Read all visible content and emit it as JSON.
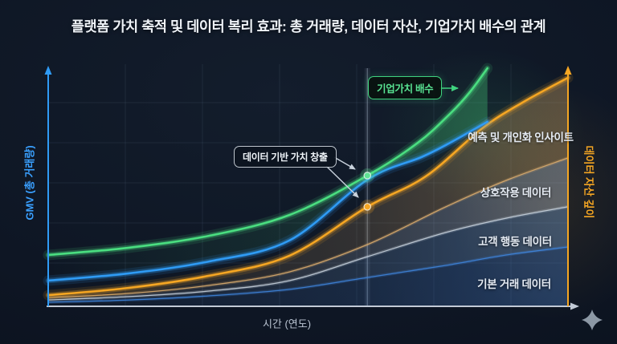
{
  "title": "플랫폼 가치 축적 및 데이터 복리 효과: 총 거래량, 데이터 자산, 기업가치 배수의 관계",
  "axes": {
    "left": {
      "label": "GMV (총 거래량)",
      "color": "#3aa0ff"
    },
    "right": {
      "label": "데이터 자산 깊이",
      "color": "#f5a623"
    },
    "x": {
      "label": "시간 (연도)",
      "color": "#b9c3d1"
    }
  },
  "annotations": {
    "enterprise_value_callout": "기업가치 배수",
    "data_value_callout": "데이터 기반 가치 창출"
  },
  "icons": {
    "logo": "sparkle-logo-icon",
    "logo_color": "#9aa6b4"
  },
  "chart_data": {
    "type": "area",
    "title": "플랫폼 가치 축적 및 데이터 복리 효과",
    "xlabel": "시간 (연도)",
    "ylabel_left": "GMV (총 거래량)",
    "ylabel_right": "데이터 자산 깊이",
    "x_range": [
      0,
      10
    ],
    "y_range": [
      0,
      100
    ],
    "grid": true,
    "series": [
      {
        "id": "ev-multiple",
        "name": "기업가치 배수",
        "role": "line",
        "color": "#4ade80",
        "x": [
          0,
          1.55,
          3.09,
          4.64,
          6.14,
          7.11,
          7.73,
          8.11,
          8.45
        ],
        "v": [
          21.2,
          24.2,
          29.1,
          37.7,
          54.0,
          67.5,
          79.5,
          88.4,
          98.3
        ]
      },
      {
        "id": "gmv",
        "name": "GMV (총 거래량)",
        "role": "line",
        "color": "#2f9bf5",
        "x": [
          0,
          1.55,
          3.09,
          4.64,
          6.14,
          7.18,
          7.73,
          8.45
        ],
        "v": [
          10.6,
          13.6,
          18.5,
          27.2,
          52.3,
          61.6,
          67.5,
          76.2
        ]
      },
      {
        "id": "data-asset",
        "name": "데이터 자산 깊이",
        "role": "line",
        "color": "#f5a623",
        "x": [
          0,
          1.55,
          3.09,
          4.64,
          6.14,
          7.26,
          8.35,
          9.12,
          10
        ],
        "v": [
          4.6,
          7.6,
          12.6,
          20.9,
          41.1,
          53.6,
          73.5,
          84.1,
          94.4
        ]
      },
      {
        "id": "b1",
        "name": "예측/상호작용 경계",
        "role": "boundary",
        "color": "#e0b070",
        "x": [
          0,
          1.55,
          3.09,
          4.64,
          6.14,
          7.65,
          8.81,
          10
        ],
        "v": [
          3.6,
          5.3,
          8.6,
          14.2,
          25.5,
          41.1,
          52.0,
          61.3
        ]
      },
      {
        "id": "b2",
        "name": "상호작용/고객행동 경계",
        "role": "boundary",
        "color": "#cdd7e2",
        "x": [
          0,
          1.55,
          3.09,
          4.64,
          6.14,
          7.65,
          8.81,
          10
        ],
        "v": [
          2.6,
          4.0,
          6.3,
          10.6,
          20.5,
          30.5,
          36.4,
          41.1
        ]
      },
      {
        "id": "b3",
        "name": "고객행동/기본거래 경계",
        "role": "boundary",
        "color": "#3f87e0",
        "x": [
          0,
          1.55,
          3.09,
          4.64,
          6.14,
          7.65,
          8.81,
          10
        ],
        "v": [
          1.7,
          2.6,
          4.3,
          7.0,
          11.9,
          16.9,
          21.2,
          24.5
        ]
      }
    ],
    "bands": [
      {
        "label": "예측 및 개인화 인사이트",
        "top": "data-asset",
        "bottom": "b1",
        "color": "#cfa264"
      },
      {
        "label": "상호작용 데이터",
        "top": "b1",
        "bottom": "b2",
        "color": "#c3cdd9"
      },
      {
        "label": "고객 행동 데이터",
        "top": "b2",
        "bottom": "b3",
        "color": "#7aa7dc"
      },
      {
        "label": "기본 거래 데이터",
        "top": "b3",
        "bottom": "baseline",
        "color": "#4a7fc9"
      }
    ],
    "highlight_area": {
      "top": "ev-multiple",
      "bottom": "gmv",
      "color": "#4ade80"
    },
    "marker": {
      "x": 6.14,
      "points": [
        {
          "series": "ev-multiple",
          "v": 54.0,
          "color": "#5fe394"
        },
        {
          "series": "data-asset",
          "v": 41.1,
          "color": "#f5a623"
        }
      ]
    },
    "legend_position": "none"
  }
}
